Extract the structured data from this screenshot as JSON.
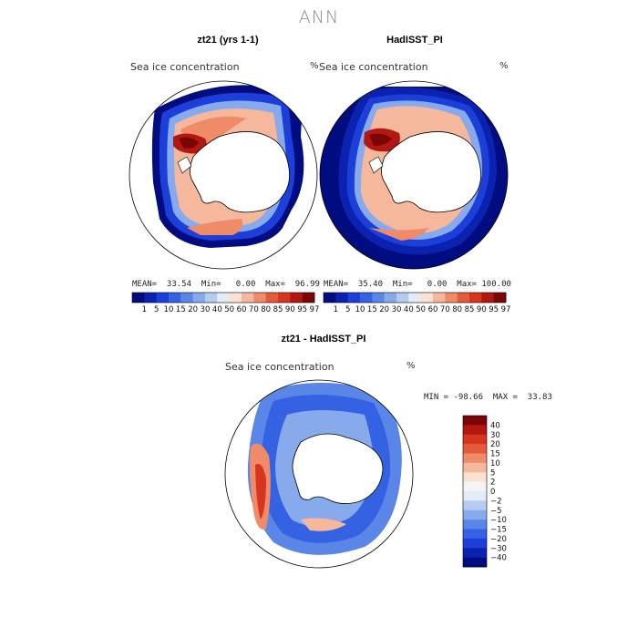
{
  "figure": {
    "title": "ANN"
  },
  "panels": [
    {
      "title": "zt21 (yrs 1-1)",
      "field_label": "Sea ice concentration",
      "unit": "%",
      "stats": {
        "mean": "33.54",
        "min": "0.00",
        "max": "96.99"
      },
      "stats_text": "MEAN=  33.54  Min=   0.00  Max=  96.99"
    },
    {
      "title": "HadISST_PI",
      "field_label": "Sea ice concentration",
      "unit": "%",
      "stats": {
        "mean": "35.40",
        "min": "0.00",
        "max": "100.00"
      },
      "stats_text": "MEAN=  35.40  Min=   0.00  Max= 100.00"
    },
    {
      "title": "zt21 - HadISST_PI",
      "field_label": "Sea ice concentration",
      "unit": "%",
      "stats": {
        "min": "-98.66",
        "max": "33.83"
      },
      "stats_text": "MIN = -98.66  MAX =  33.83"
    }
  ],
  "chart_data": [
    {
      "type": "heatmap",
      "name": "model field colorbar",
      "levels": [
        "1",
        "5",
        "10",
        "15",
        "20",
        "30",
        "40",
        "50",
        "60",
        "70",
        "80",
        "85",
        "90",
        "95",
        "97"
      ],
      "colors": [
        "#000c7f",
        "#0b22b0",
        "#1d3fd9",
        "#3561e3",
        "#5a86e8",
        "#86aaec",
        "#b5cbf0",
        "#e3ecf7",
        "#fbe1d4",
        "#f6b89c",
        "#ef8b68",
        "#e65a3c",
        "#d63520",
        "#b21811",
        "#7a0505"
      ]
    },
    {
      "type": "heatmap",
      "name": "difference colorbar",
      "levels": [
        "40",
        "30",
        "20",
        "15",
        "10",
        "5",
        "2",
        "0",
        "−2",
        "−5",
        "−10",
        "−15",
        "−20",
        "−30",
        "−40"
      ],
      "colors": [
        "#7a0505",
        "#b21811",
        "#d63520",
        "#e65a3c",
        "#ef8b68",
        "#f6b89c",
        "#fbe1d4",
        "#f4f4f4",
        "#e3ecf7",
        "#b5cbf0",
        "#86aaec",
        "#5a86e8",
        "#3561e3",
        "#1d3fd9",
        "#0b22b0",
        "#000c7f"
      ]
    }
  ]
}
